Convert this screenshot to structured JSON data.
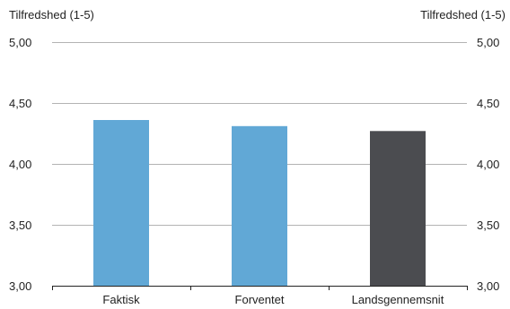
{
  "chart_data": {
    "type": "bar",
    "left_axis_title": "Tilfredshed (1-5)",
    "right_axis_title": "Tilfredshed (1-5)",
    "categories": [
      "Faktisk",
      "Forventet",
      "Landsgennemsnit"
    ],
    "values": [
      4.36,
      4.31,
      4.27
    ],
    "bar_colors": [
      "#61a8d6",
      "#61a8d6",
      "#4b4c50"
    ],
    "ylim": [
      3.0,
      5.0
    ],
    "yticks": [
      3.0,
      3.5,
      4.0,
      4.5,
      5.0
    ],
    "ytick_labels": [
      "3,00",
      "3,50",
      "4,00",
      "4,50",
      "5,00"
    ],
    "grid": true,
    "grid_color": "#b3b3b3",
    "axis_color": "#222222"
  }
}
